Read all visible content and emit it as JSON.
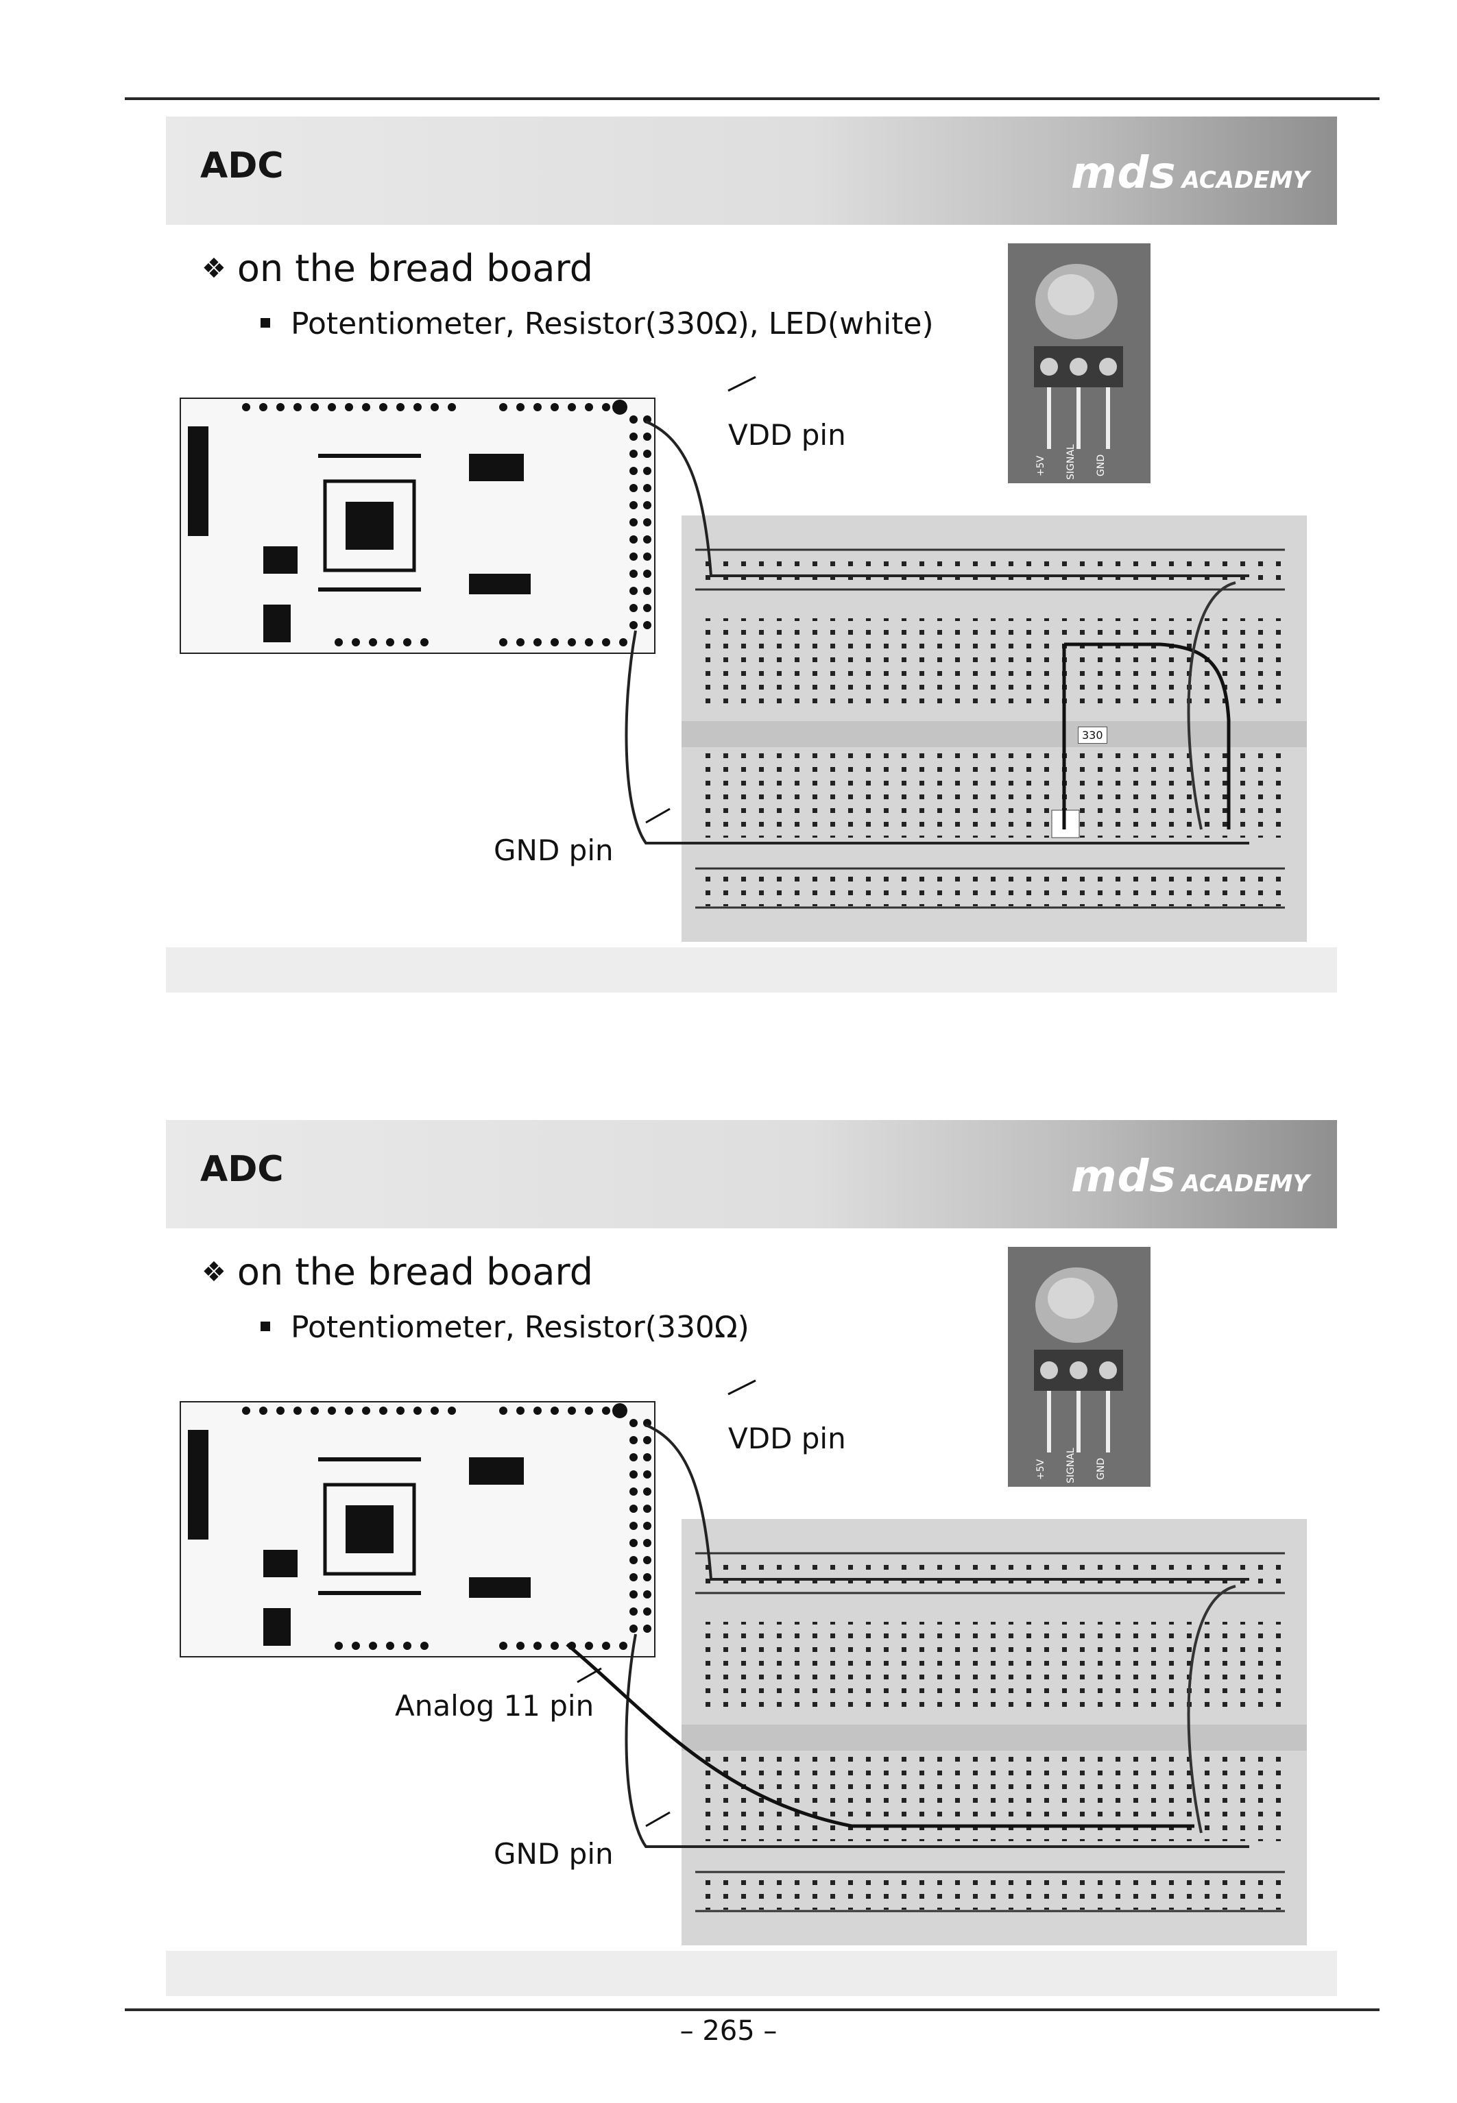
{
  "slides": [
    {
      "header_title": "ADC",
      "logo": {
        "main": "mds",
        "sub": "ACADEMY"
      },
      "heading": "on the bread board",
      "bullet": "Potentiometer, Resistor(330Ω), LED(white)",
      "callouts": {
        "vdd": "VDD pin",
        "gnd": "GND pin"
      },
      "resistor_label": "330"
    },
    {
      "header_title": "ADC",
      "logo": {
        "main": "mds",
        "sub": "ACADEMY"
      },
      "heading": "on the bread board",
      "bullet": "Potentiometer, Resistor(330Ω)",
      "callouts": {
        "vdd": "VDD pin",
        "analog": "Analog 11 pin",
        "gnd": "GND pin"
      }
    }
  ],
  "potentiometer_labels": [
    "+5V",
    "SIGNAL",
    "GND"
  ],
  "page_number": "– 265 –"
}
